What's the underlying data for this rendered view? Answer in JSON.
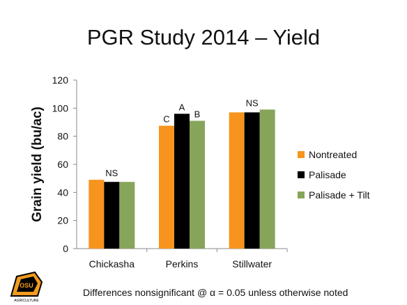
{
  "title": "PGR Study 2014 – Yield",
  "footnote": "Differences nonsignificant @ α = 0.05 unless otherwise noted",
  "logo_text": "OSU AGRICULTURE",
  "colors": {
    "nontreated": "#f7941d",
    "palisade": "#000000",
    "palisade_tilt": "#87a55a",
    "grid": "#888888",
    "logo_orange": "#f29b1f"
  },
  "chart_data": {
    "type": "bar",
    "title": "PGR Study 2014 – Yield",
    "xlabel": "",
    "ylabel": "Grain yield (bu/ac)",
    "ylim": [
      0,
      120
    ],
    "yticks": [
      0,
      20,
      40,
      60,
      80,
      100,
      120
    ],
    "grid": false,
    "legend_position": "right",
    "categories": [
      "Chickasha",
      "Perkins",
      "Stillwater"
    ],
    "series": [
      {
        "name": "Nontreated",
        "color": "#f7941d",
        "values": [
          49,
          87.5,
          97
        ]
      },
      {
        "name": "Palisade",
        "color": "#000000",
        "values": [
          47.5,
          96,
          97
        ]
      },
      {
        "name": "Palisade + Tilt",
        "color": "#87a55a",
        "values": [
          47.5,
          91,
          99
        ]
      }
    ],
    "annotations": [
      {
        "category": "Chickasha",
        "text": "NS"
      },
      {
        "category": "Perkins",
        "series": "Nontreated",
        "text": "C"
      },
      {
        "category": "Perkins",
        "series": "Palisade",
        "text": "A"
      },
      {
        "category": "Perkins",
        "series": "Palisade + Tilt",
        "text": "B"
      },
      {
        "category": "Stillwater",
        "text": "NS"
      }
    ]
  }
}
